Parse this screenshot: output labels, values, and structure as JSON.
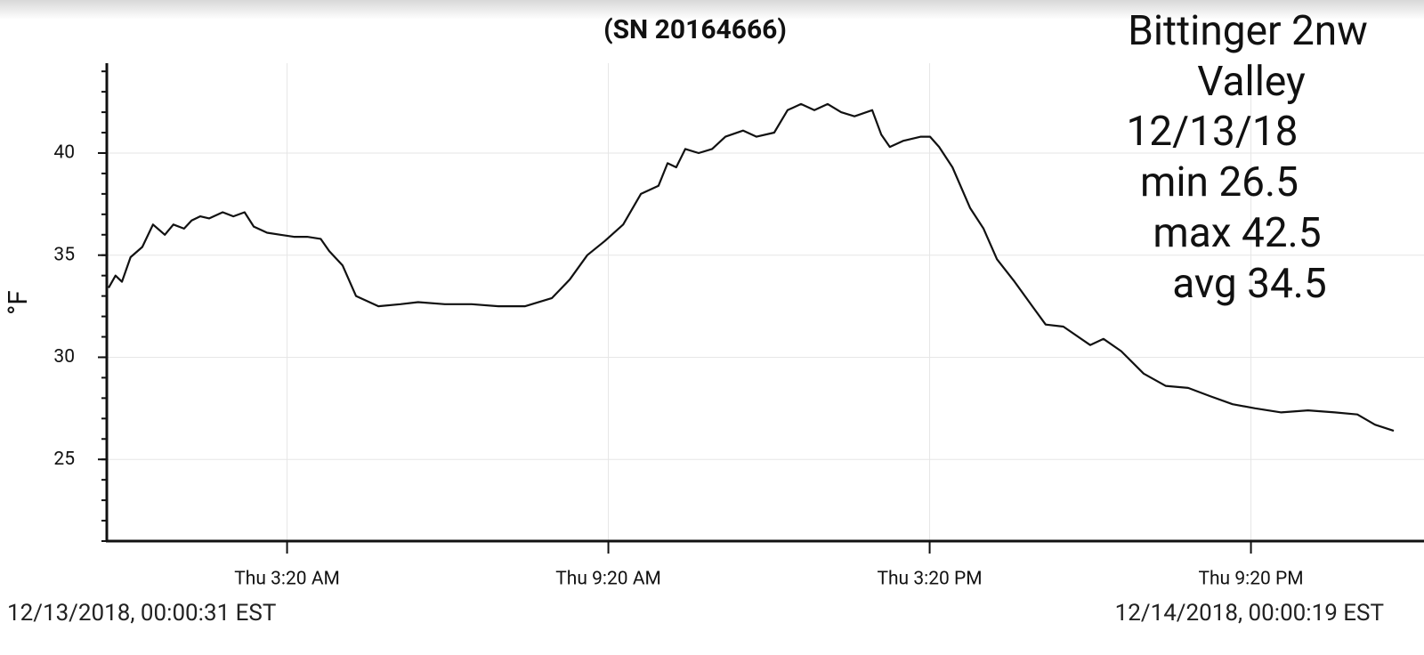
{
  "chart_data": {
    "type": "line",
    "title": "(SN 20164666)",
    "y_label": "°F",
    "annotations": [
      "Bittinger 2nw",
      "Valley",
      "12/13/18",
      "min 26.5",
      "max 42.5",
      "avg 34.5"
    ],
    "start_label": "12/13/2018, 00:00:31 EST",
    "end_label": "12/14/2018, 00:00:19 EST",
    "xlim": [
      0,
      24
    ],
    "xticks": [
      {
        "value": 3.3333,
        "label": "Thu 3:20 AM"
      },
      {
        "value": 9.3333,
        "label": "Thu 9:20 AM"
      },
      {
        "value": 15.3333,
        "label": "Thu 3:20 PM"
      },
      {
        "value": 21.3333,
        "label": "Thu 9:20 PM"
      }
    ],
    "ylim": [
      21,
      44.4
    ],
    "yticks": [
      25,
      30,
      35,
      40
    ],
    "grid": true,
    "series": [
      {
        "color": "#111111",
        "x": [
          0,
          0.13,
          0.25,
          0.41,
          0.63,
          0.83,
          1.05,
          1.21,
          1.41,
          1.55,
          1.71,
          1.88,
          2.13,
          2.33,
          2.54,
          2.71,
          2.96,
          3.21,
          3.46,
          3.71,
          3.96,
          4.12,
          4.37,
          4.62,
          5.04,
          5.45,
          5.78,
          6.28,
          6.78,
          7.28,
          7.78,
          8.28,
          8.61,
          8.94,
          9.27,
          9.61,
          9.94,
          10.27,
          10.44,
          10.6,
          10.77,
          11.02,
          11.27,
          11.52,
          11.85,
          12.1,
          12.43,
          12.68,
          12.93,
          13.18,
          13.43,
          13.68,
          13.93,
          14.26,
          14.43,
          14.59,
          14.84,
          15.17,
          15.34,
          15.51,
          15.76,
          16.09,
          16.34,
          16.59,
          16.92,
          17.25,
          17.5,
          17.83,
          18.33,
          18.58,
          18.91,
          19.33,
          19.74,
          20.16,
          20.57,
          20.99,
          21.41,
          21.9,
          22.4,
          22.9,
          23.32,
          23.65,
          24
        ],
        "values": [
          33.4,
          34.0,
          33.7,
          34.9,
          35.4,
          36.5,
          36.0,
          36.5,
          36.3,
          36.7,
          36.9,
          36.8,
          37.1,
          36.9,
          37.1,
          36.4,
          36.1,
          36.0,
          35.9,
          35.9,
          35.8,
          35.2,
          34.5,
          33.0,
          32.5,
          32.6,
          32.7,
          32.6,
          32.6,
          32.5,
          32.5,
          32.9,
          33.8,
          35.0,
          35.7,
          36.5,
          38.0,
          38.4,
          39.5,
          39.3,
          40.2,
          40.0,
          40.2,
          40.8,
          41.1,
          40.8,
          41.0,
          42.1,
          42.4,
          42.1,
          42.4,
          42.0,
          41.8,
          42.1,
          40.9,
          40.3,
          40.6,
          40.8,
          40.8,
          40.3,
          39.3,
          37.3,
          36.3,
          34.8,
          33.7,
          32.5,
          31.6,
          31.5,
          30.6,
          30.9,
          30.3,
          29.2,
          28.6,
          28.5,
          28.1,
          27.7,
          27.5,
          27.3,
          27.4,
          27.3,
          27.2,
          26.7,
          26.4
        ]
      }
    ]
  }
}
